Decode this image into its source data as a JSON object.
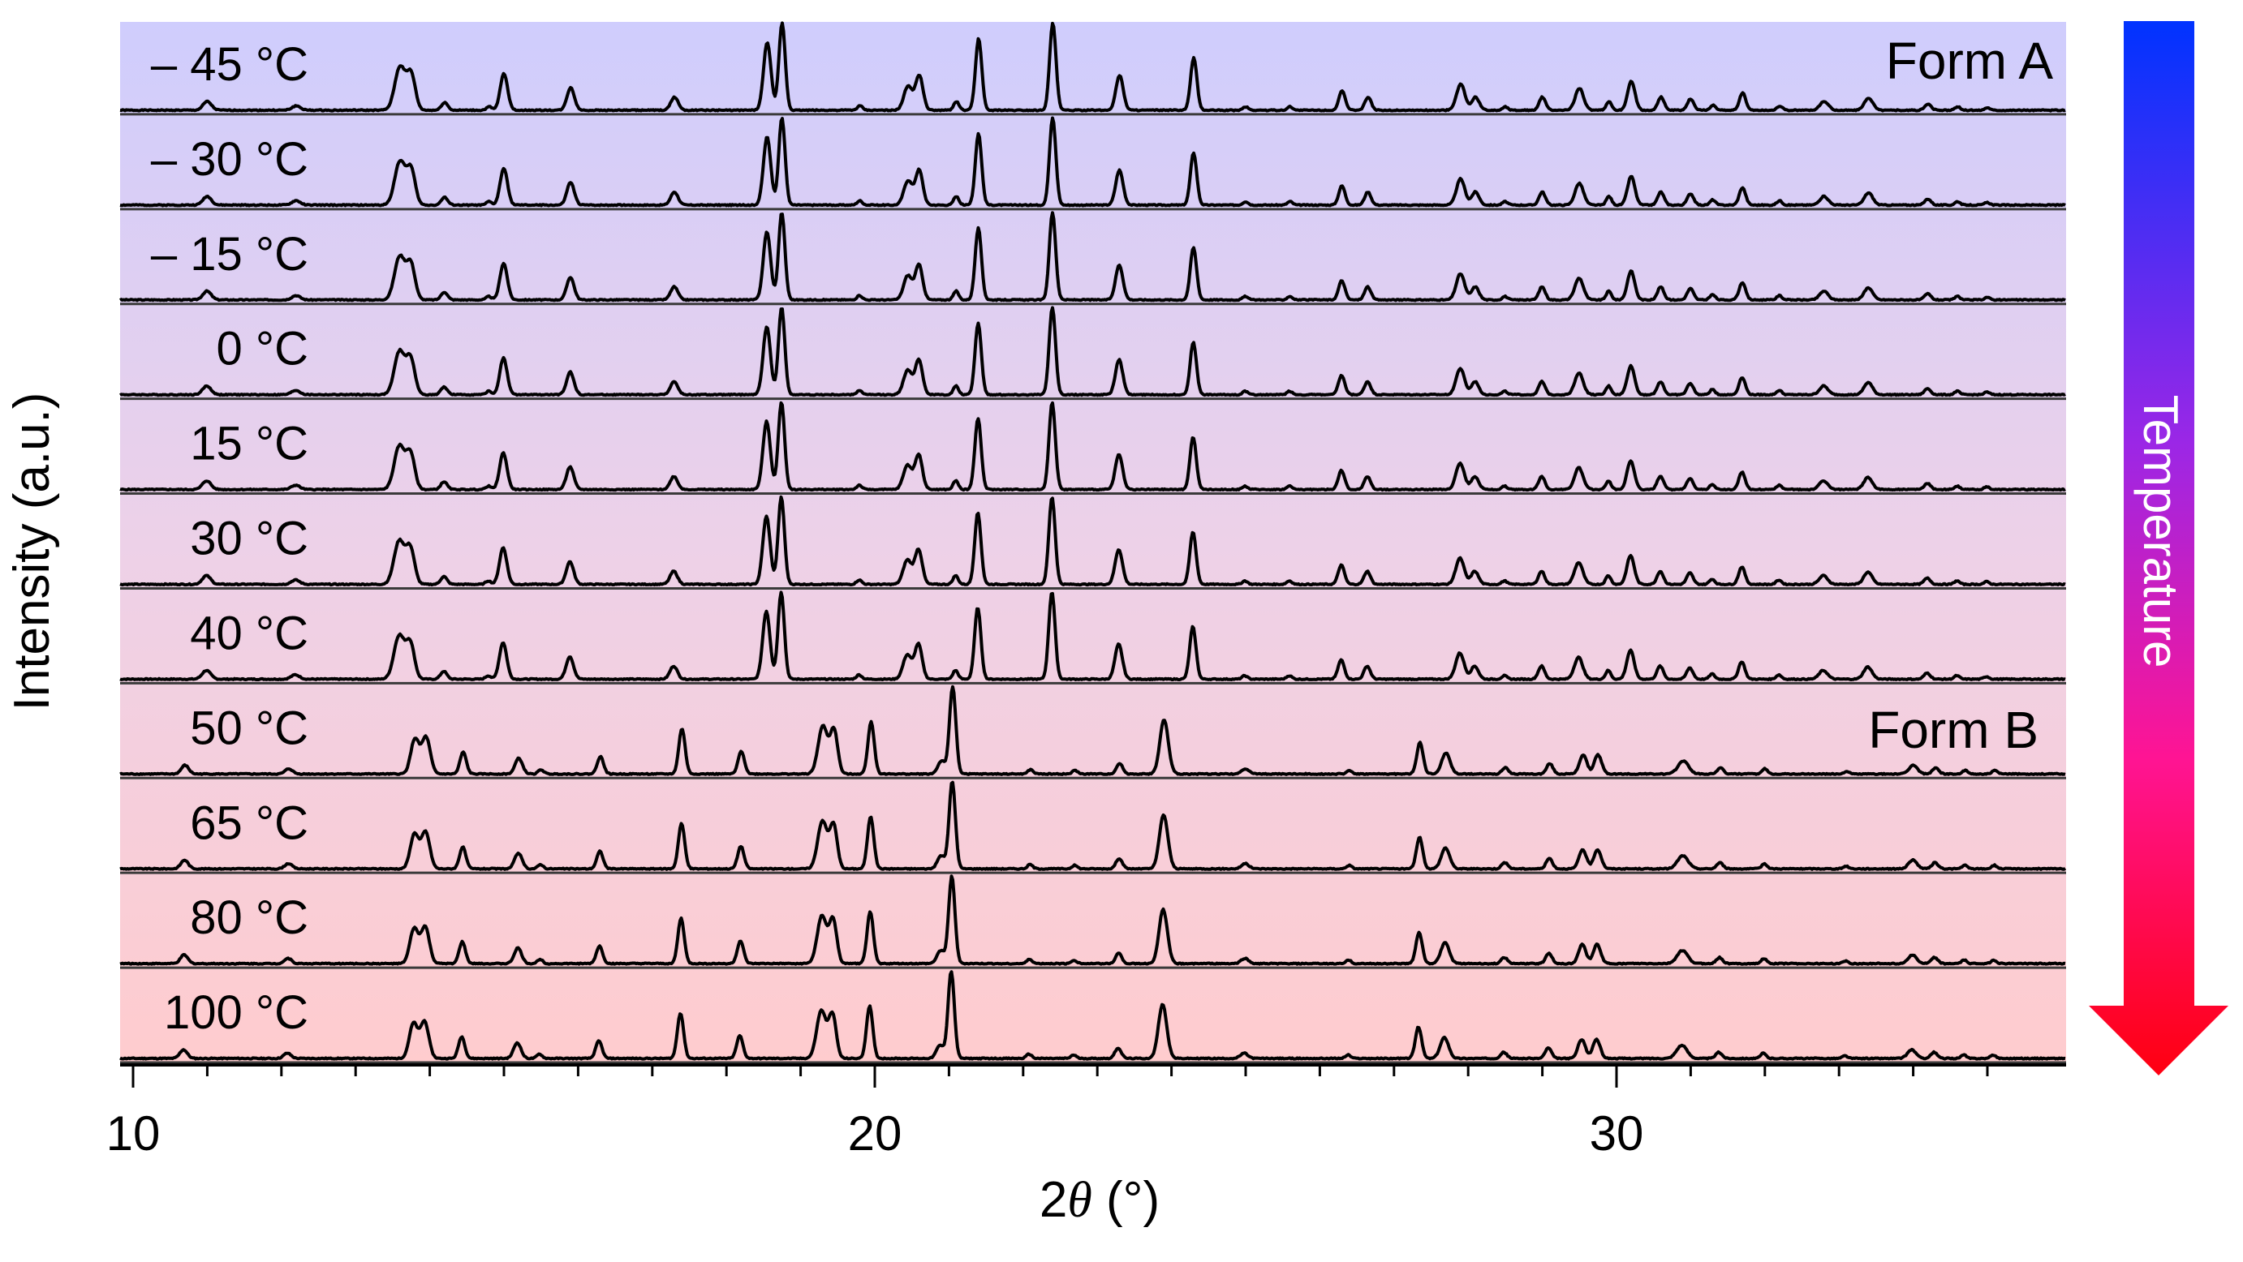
{
  "chart_data": {
    "type": "line",
    "subtype": "stacked variable-temperature powder XRD patterns",
    "title": "",
    "xlabel": "2θ (°)",
    "xlabel_parts": {
      "prefix": "2",
      "symbol": "θ",
      "suffix": " (°)"
    },
    "ylabel": "Intensity (a.u.)",
    "xlim": [
      10,
      36.05
    ],
    "x_major_ticks": [
      10,
      20,
      30
    ],
    "x_minor_tick_step": 1,
    "x_minor_tick_max": 35,
    "grid": false,
    "annotations": [
      {
        "text": "Form A",
        "panel_index": 0,
        "position": "top-right"
      },
      {
        "text": "Form B",
        "panel_index": 7,
        "position": "top-right"
      }
    ],
    "temperature_arrow": {
      "label": "Temperature",
      "direction": "down",
      "color_top": "#0033FF",
      "color_mid": "#9B27E6",
      "color_bottom": "#FF0010"
    },
    "panel_colors": {
      "top": "#CFCDFD",
      "middle": "#EDD1E8",
      "bottom": "#FFCCCE"
    },
    "series": [
      {
        "name": "– 45 °C",
        "temperature_c": -45,
        "form": "A"
      },
      {
        "name": "– 30 °C",
        "temperature_c": -30,
        "form": "A"
      },
      {
        "name": "– 15 °C",
        "temperature_c": -15,
        "form": "A"
      },
      {
        "name": "0 °C",
        "temperature_c": 0,
        "form": "A"
      },
      {
        "name": "15 °C",
        "temperature_c": 15,
        "form": "A"
      },
      {
        "name": "30 °C",
        "temperature_c": 30,
        "form": "A"
      },
      {
        "name": "40 °C",
        "temperature_c": 40,
        "form": "A"
      },
      {
        "name": "50 °C",
        "temperature_c": 50,
        "form": "B"
      },
      {
        "name": "65 °C",
        "temperature_c": 65,
        "form": "B"
      },
      {
        "name": "80 °C",
        "temperature_c": 80,
        "form": "B"
      },
      {
        "name": "100 °C",
        "temperature_c": 100,
        "form": "B"
      }
    ],
    "peaks_form_A": [
      [
        11.0,
        0.1,
        0.08
      ],
      [
        12.2,
        0.05,
        0.08
      ],
      [
        13.6,
        0.5,
        0.1
      ],
      [
        13.75,
        0.4,
        0.08
      ],
      [
        14.2,
        0.09,
        0.06
      ],
      [
        14.8,
        0.04,
        0.05
      ],
      [
        15.0,
        0.42,
        0.07
      ],
      [
        15.9,
        0.26,
        0.07
      ],
      [
        17.3,
        0.15,
        0.07
      ],
      [
        18.55,
        0.78,
        0.07
      ],
      [
        18.75,
        1.0,
        0.06
      ],
      [
        19.8,
        0.05,
        0.05
      ],
      [
        20.45,
        0.28,
        0.08
      ],
      [
        20.6,
        0.4,
        0.07
      ],
      [
        21.1,
        0.1,
        0.05
      ],
      [
        21.4,
        0.82,
        0.06
      ],
      [
        22.4,
        1.0,
        0.06
      ],
      [
        23.3,
        0.4,
        0.07
      ],
      [
        24.3,
        0.6,
        0.06
      ],
      [
        25.0,
        0.04,
        0.05
      ],
      [
        25.6,
        0.04,
        0.05
      ],
      [
        26.3,
        0.22,
        0.06
      ],
      [
        26.65,
        0.15,
        0.06
      ],
      [
        27.9,
        0.3,
        0.08
      ],
      [
        28.1,
        0.15,
        0.07
      ],
      [
        28.5,
        0.04,
        0.05
      ],
      [
        29.0,
        0.15,
        0.06
      ],
      [
        29.5,
        0.25,
        0.08
      ],
      [
        29.9,
        0.1,
        0.05
      ],
      [
        30.2,
        0.33,
        0.07
      ],
      [
        30.6,
        0.15,
        0.06
      ],
      [
        31.0,
        0.13,
        0.06
      ],
      [
        31.3,
        0.06,
        0.05
      ],
      [
        31.7,
        0.2,
        0.06
      ],
      [
        32.2,
        0.05,
        0.05
      ],
      [
        32.8,
        0.1,
        0.08
      ],
      [
        33.4,
        0.14,
        0.08
      ],
      [
        34.2,
        0.07,
        0.06
      ],
      [
        34.6,
        0.04,
        0.05
      ],
      [
        35.0,
        0.03,
        0.05
      ]
    ],
    "peaks_form_B": [
      [
        10.7,
        0.1,
        0.07
      ],
      [
        12.1,
        0.06,
        0.07
      ],
      [
        13.8,
        0.4,
        0.08
      ],
      [
        13.95,
        0.42,
        0.08
      ],
      [
        14.45,
        0.25,
        0.06
      ],
      [
        15.2,
        0.18,
        0.07
      ],
      [
        15.5,
        0.05,
        0.05
      ],
      [
        16.3,
        0.2,
        0.06
      ],
      [
        17.4,
        0.52,
        0.06
      ],
      [
        18.2,
        0.26,
        0.06
      ],
      [
        19.3,
        0.55,
        0.09
      ],
      [
        19.45,
        0.5,
        0.07
      ],
      [
        19.95,
        0.6,
        0.06
      ],
      [
        20.9,
        0.15,
        0.07
      ],
      [
        21.05,
        1.0,
        0.06
      ],
      [
        22.1,
        0.05,
        0.05
      ],
      [
        22.7,
        0.04,
        0.05
      ],
      [
        23.3,
        0.12,
        0.06
      ],
      [
        23.9,
        0.62,
        0.08
      ],
      [
        25.0,
        0.06,
        0.07
      ],
      [
        26.4,
        0.04,
        0.05
      ],
      [
        27.35,
        0.36,
        0.06
      ],
      [
        27.7,
        0.24,
        0.08
      ],
      [
        28.5,
        0.07,
        0.06
      ],
      [
        29.1,
        0.12,
        0.06
      ],
      [
        29.55,
        0.22,
        0.07
      ],
      [
        29.75,
        0.22,
        0.07
      ],
      [
        30.9,
        0.15,
        0.1
      ],
      [
        31.4,
        0.07,
        0.06
      ],
      [
        32.0,
        0.06,
        0.05
      ],
      [
        33.1,
        0.03,
        0.05
      ],
      [
        34.0,
        0.1,
        0.08
      ],
      [
        34.3,
        0.07,
        0.06
      ],
      [
        34.7,
        0.04,
        0.05
      ],
      [
        35.1,
        0.04,
        0.05
      ]
    ]
  }
}
